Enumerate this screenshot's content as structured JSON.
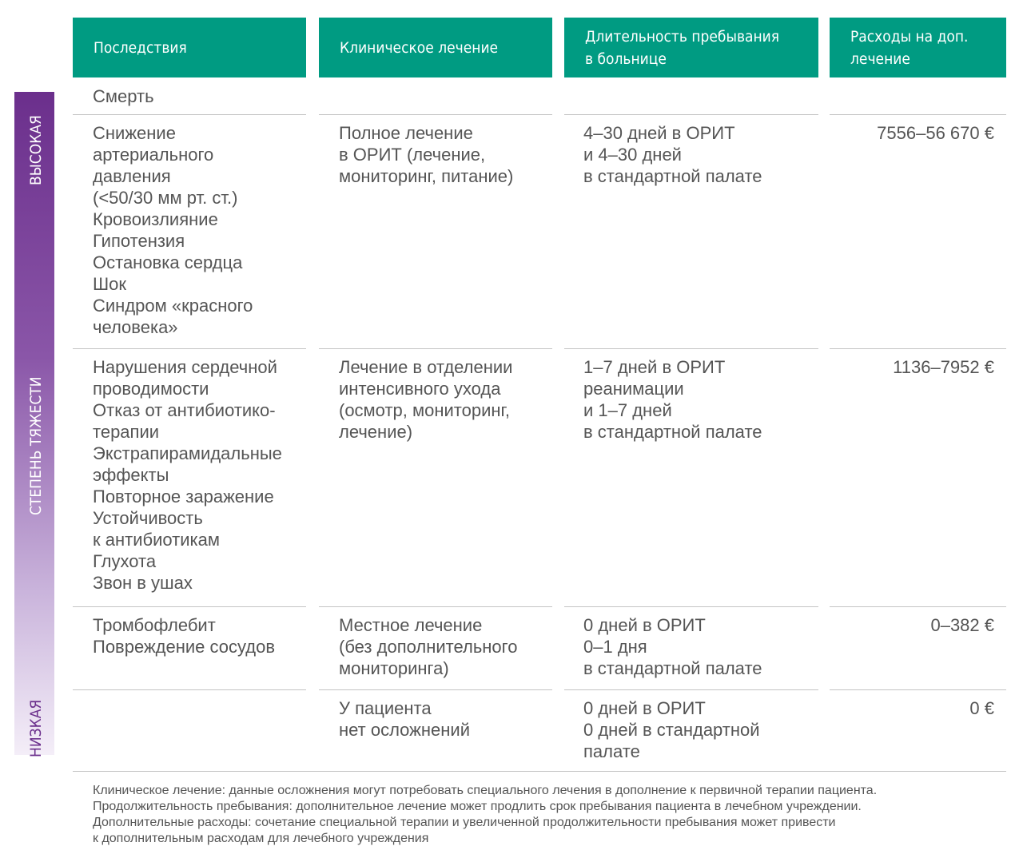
{
  "severity_scale": {
    "high": "ВЫСОКАЯ",
    "label": "СТЕПЕНЬ ТЯЖЕСТИ",
    "low": "НИЗКАЯ"
  },
  "table": {
    "headers": [
      [
        "Последствия"
      ],
      [
        "Клиническое лечение"
      ],
      [
        "Длительность пребывания",
        "в больнице"
      ],
      [
        "Расходы на доп.",
        "лечение"
      ]
    ],
    "rows": [
      [
        [
          "Смерть"
        ],
        [],
        [],
        []
      ],
      [
        [
          "Снижение",
          "артериального",
          "давления",
          "(<50/30 мм рт. ст.)",
          "Кровоизлияние",
          "Гипотензия",
          "Остановка сердца",
          "Шок",
          "Синдром «красного",
          "человека»"
        ],
        [
          "Полное лечение",
          "в ОРИТ (лечение,",
          "мониторинг, питание)"
        ],
        [
          "4–30 дней в ОРИТ",
          "и 4–30 дней",
          "в стандартной палате"
        ],
        [
          "7556–56 670 €"
        ]
      ],
      [
        [
          "Нарушения сердечной",
          "проводимости",
          "Отказ от антибиотико-",
          "терапии",
          "Экстрапирамидальные",
          "эффекты",
          "Повторное заражение",
          "Устойчивость",
          "к антибиотикам",
          "Глухота",
          "Звон в ушах"
        ],
        [
          "Лечение в отделении",
          "интенсивного ухода",
          "(осмотр, мониторинг,",
          "лечение)"
        ],
        [
          "1–7 дней в ОРИТ",
          "реанимации",
          "и 1–7 дней",
          "в стандартной палате"
        ],
        [
          "1136–7952 €"
        ]
      ],
      [
        [
          "Тромбофлебит",
          "Повреждение сосудов"
        ],
        [
          "Местное лечение",
          "(без дополнительного",
          "мониторинга)"
        ],
        [
          "0 дней в ОРИТ",
          "0–1 дня",
          "в стандартной палате"
        ],
        [
          "0–382 €"
        ]
      ],
      [
        [],
        [
          "У пациента",
          "нет осложнений"
        ],
        [
          "0 дней в ОРИТ",
          "0 дней в стандартной",
          "палате"
        ],
        [
          "0 €"
        ]
      ]
    ]
  },
  "notes": [
    "Клиническое лечение: данные осложнения могут потребовать специального лечения в дополнение к первичной терапии пациента.",
    "Продолжительность пребывания: дополнительное лечение может продлить срок пребывания пациента в лечебном учреждении.",
    "Дополнительные расходы: сочетание специальной терапии и увеличенной продолжительности пребывания может привести",
    "к дополнительным расходам для лечебного учреждения"
  ]
}
